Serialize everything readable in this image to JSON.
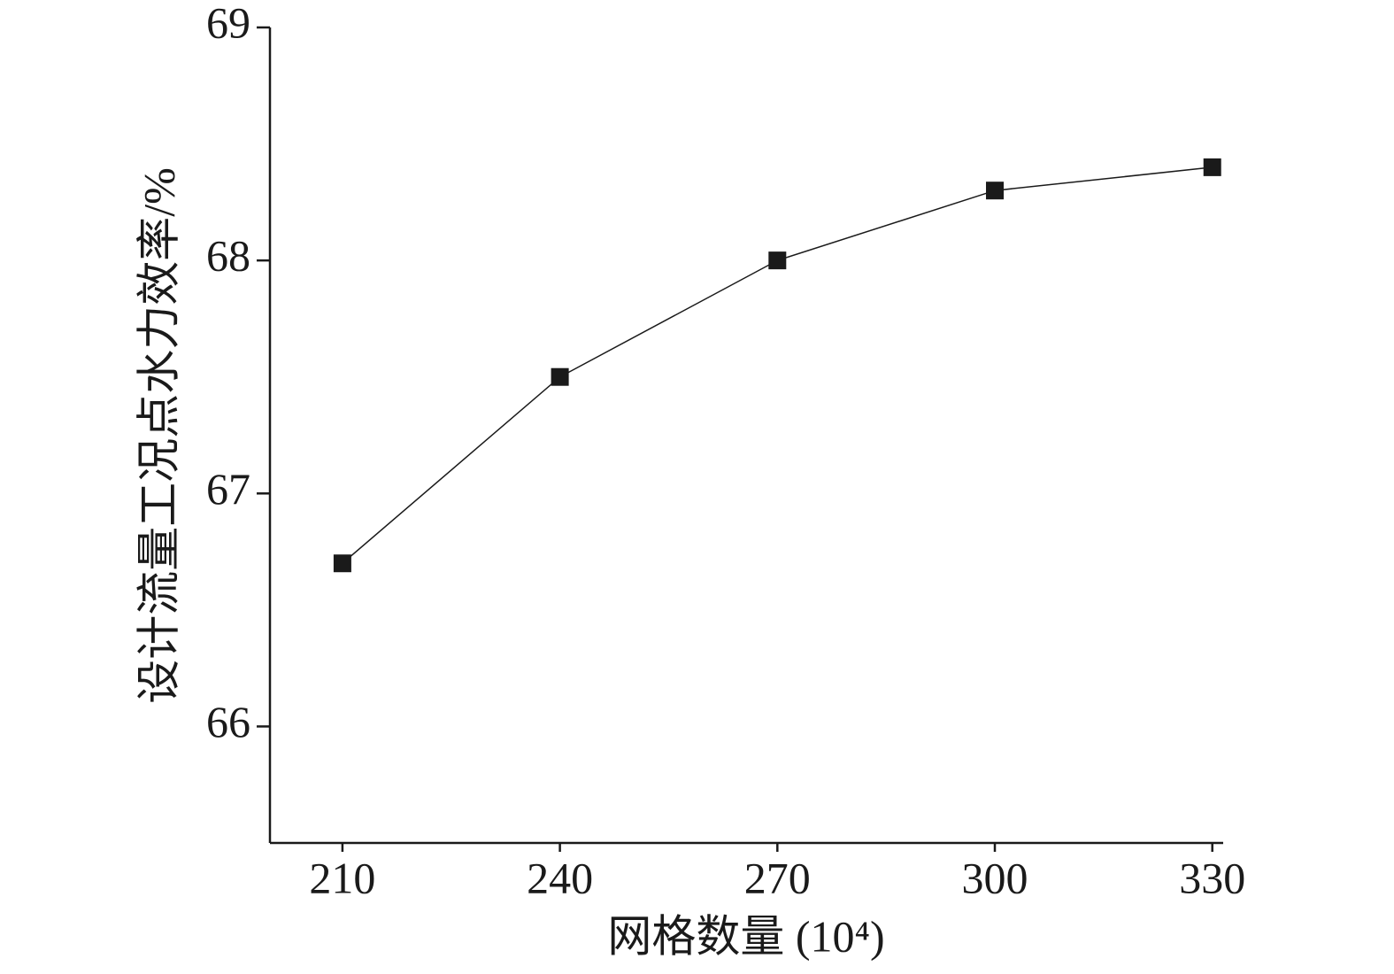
{
  "chart_data": {
    "type": "line",
    "x_label": "网格数量 (10⁴)",
    "y_label": "设计流量工况点水力效率/%",
    "x": [
      210,
      240,
      270,
      300,
      330
    ],
    "series": [
      {
        "color": "#1a1a1a",
        "values": [
          66.7,
          67.5,
          68.0,
          68.3,
          68.4
        ]
      }
    ],
    "xlim": [
      200,
      331.5
    ],
    "xticks": [
      210,
      240,
      270,
      300,
      330
    ],
    "ylim": [
      65.5,
      69
    ],
    "yticks": [
      66,
      67,
      68,
      69
    ]
  }
}
